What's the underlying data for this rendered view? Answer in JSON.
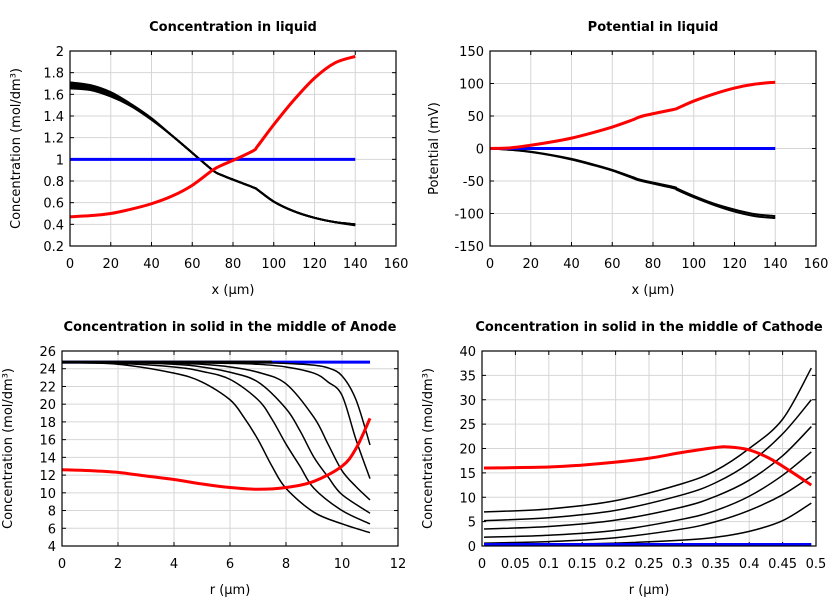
{
  "chart_data": [
    {
      "type": "line",
      "title": "Concentration in liquid",
      "xlabel": "x (µm)",
      "ylabel": "Concentration (mol/dm³)",
      "xlim": [
        0,
        160
      ],
      "ylim": [
        0.2,
        2
      ],
      "xticks": [
        "0",
        "20",
        "40",
        "60",
        "80",
        "100",
        "120",
        "140",
        "160"
      ],
      "yticks": [
        "0.2",
        "0.4",
        "0.6",
        "0.8",
        "1",
        "1.2",
        "1.4",
        "1.6",
        "1.8",
        "2"
      ],
      "grid": true,
      "series": [
        {
          "name": "black-1",
          "color": "#000000",
          "width": 2,
          "x": [
            0,
            10,
            20,
            30,
            40,
            50,
            60,
            70,
            75,
            90,
            92,
            100,
            110,
            120,
            130,
            140
          ],
          "y": [
            1.71,
            1.685,
            1.62,
            1.51,
            1.38,
            1.22,
            1.06,
            0.9,
            0.85,
            0.74,
            0.72,
            0.61,
            0.52,
            0.46,
            0.42,
            0.39
          ]
        },
        {
          "name": "black-2",
          "color": "#000000",
          "width": 2,
          "x": [
            0,
            10,
            20,
            30,
            40,
            50,
            60,
            70,
            75,
            90,
            92,
            100,
            110,
            120,
            130,
            140
          ],
          "y": [
            1.7,
            1.675,
            1.61,
            1.505,
            1.375,
            1.22,
            1.06,
            0.9,
            0.85,
            0.74,
            0.72,
            0.61,
            0.52,
            0.46,
            0.42,
            0.395
          ]
        },
        {
          "name": "black-3",
          "color": "#000000",
          "width": 2,
          "x": [
            0,
            10,
            20,
            30,
            40,
            50,
            60,
            70,
            75,
            90,
            92,
            100,
            110,
            120,
            130,
            140
          ],
          "y": [
            1.685,
            1.665,
            1.6,
            1.5,
            1.37,
            1.22,
            1.06,
            0.9,
            0.85,
            0.74,
            0.72,
            0.61,
            0.52,
            0.46,
            0.42,
            0.4
          ]
        },
        {
          "name": "black-4",
          "color": "#000000",
          "width": 2,
          "x": [
            0,
            10,
            20,
            30,
            40,
            50,
            60,
            70,
            75,
            90,
            92,
            100,
            110,
            120,
            130,
            140
          ],
          "y": [
            1.67,
            1.65,
            1.59,
            1.495,
            1.37,
            1.22,
            1.06,
            0.9,
            0.85,
            0.74,
            0.72,
            0.61,
            0.52,
            0.46,
            0.42,
            0.4
          ]
        },
        {
          "name": "black-5",
          "color": "#000000",
          "width": 2,
          "x": [
            0,
            10,
            20,
            30,
            40,
            50,
            60,
            70,
            75,
            90,
            92,
            100,
            110,
            120,
            130,
            140
          ],
          "y": [
            1.655,
            1.64,
            1.58,
            1.49,
            1.365,
            1.22,
            1.06,
            0.9,
            0.85,
            0.74,
            0.72,
            0.61,
            0.52,
            0.46,
            0.42,
            0.4
          ]
        },
        {
          "name": "blue",
          "color": "#0000ff",
          "width": 3,
          "x": [
            0,
            140
          ],
          "y": [
            1,
            1
          ]
        },
        {
          "name": "red",
          "color": "#ff0000",
          "width": 3,
          "x": [
            0,
            10,
            20,
            30,
            40,
            50,
            60,
            70,
            75,
            80,
            90,
            92,
            100,
            110,
            120,
            130,
            140
          ],
          "y": [
            0.47,
            0.48,
            0.5,
            0.54,
            0.59,
            0.66,
            0.76,
            0.9,
            0.95,
            0.99,
            1.08,
            1.12,
            1.32,
            1.55,
            1.75,
            1.89,
            1.95
          ]
        }
      ]
    },
    {
      "type": "line",
      "title": "Potential in liquid",
      "xlabel": "x (µm)",
      "ylabel": "Potential (mV)",
      "xlim": [
        0,
        160
      ],
      "ylim": [
        -150,
        150
      ],
      "xticks": [
        "0",
        "20",
        "40",
        "60",
        "80",
        "100",
        "120",
        "140",
        "160"
      ],
      "yticks": [
        "-150",
        "-100",
        "-50",
        "0",
        "50",
        "100",
        "150"
      ],
      "grid": true,
      "series": [
        {
          "name": "black-1",
          "color": "#000000",
          "width": 2,
          "x": [
            0,
            10,
            20,
            30,
            40,
            50,
            60,
            70,
            75,
            90,
            92,
            100,
            110,
            120,
            130,
            140
          ],
          "y": [
            0,
            -2,
            -5,
            -10,
            -16,
            -24,
            -33,
            -44,
            -49,
            -59,
            -62,
            -73,
            -85,
            -94,
            -101,
            -104
          ]
        },
        {
          "name": "black-2",
          "color": "#000000",
          "width": 2,
          "x": [
            0,
            10,
            20,
            30,
            40,
            50,
            60,
            70,
            75,
            90,
            92,
            100,
            110,
            120,
            130,
            140
          ],
          "y": [
            0,
            -2,
            -5.5,
            -10.5,
            -17,
            -25,
            -34,
            -45.5,
            -50.5,
            -61,
            -64,
            -75,
            -87,
            -97,
            -104,
            -107
          ]
        },
        {
          "name": "blue",
          "color": "#0000ff",
          "width": 3,
          "x": [
            0,
            140
          ],
          "y": [
            0,
            0
          ]
        },
        {
          "name": "red",
          "color": "#ff0000",
          "width": 3,
          "x": [
            0,
            10,
            20,
            30,
            40,
            50,
            60,
            70,
            75,
            90,
            92,
            100,
            110,
            120,
            130,
            140
          ],
          "y": [
            0,
            1,
            5,
            10,
            16,
            24,
            33,
            44,
            50,
            60,
            62,
            73,
            84,
            93,
            99,
            102
          ]
        }
      ]
    },
    {
      "type": "line",
      "title": "Concentration in solid in the middle of Anode",
      "xlabel": "r (µm)",
      "ylabel": "Concentration (mol/dm³)",
      "xlim": [
        0,
        12
      ],
      "ylim": [
        4,
        26
      ],
      "xticks": [
        "0",
        "2",
        "4",
        "6",
        "8",
        "10",
        "12"
      ],
      "yticks": [
        "4",
        "6",
        "8",
        "10",
        "12",
        "14",
        "16",
        "18",
        "20",
        "22",
        "24",
        "26"
      ],
      "grid": true,
      "series": [
        {
          "name": "blue",
          "color": "#0000ff",
          "width": 3,
          "x": [
            0,
            11
          ],
          "y": [
            24.75,
            24.75
          ]
        },
        {
          "name": "black-1",
          "color": "#000000",
          "width": 1.5,
          "x": [
            0,
            2,
            4,
            5,
            6,
            6.5,
            7,
            7.5,
            8,
            9,
            10,
            11
          ],
          "y": [
            24.7,
            24.5,
            23.5,
            22.5,
            20.5,
            18.5,
            16,
            13,
            10.5,
            7.8,
            6.5,
            5.5
          ]
        },
        {
          "name": "black-2",
          "color": "#000000",
          "width": 1.5,
          "x": [
            0,
            2,
            4,
            5,
            6,
            7,
            7.5,
            8,
            8.5,
            9,
            10,
            11
          ],
          "y": [
            24.7,
            24.6,
            24.2,
            23.7,
            22.8,
            20.5,
            18.3,
            15.5,
            13,
            10.5,
            8.0,
            6.5
          ]
        },
        {
          "name": "black-3",
          "color": "#000000",
          "width": 1.5,
          "x": [
            0,
            2,
            4,
            5,
            6,
            7,
            8,
            8.5,
            9,
            9.5,
            10,
            11
          ],
          "y": [
            24.7,
            24.7,
            24.5,
            24.2,
            23.6,
            22.5,
            19.5,
            17,
            14,
            11.8,
            9.8,
            7.7
          ]
        },
        {
          "name": "black-4",
          "color": "#000000",
          "width": 1.5,
          "x": [
            0,
            2,
            4,
            5,
            6,
            7,
            8,
            9,
            9.5,
            10,
            10.5,
            11
          ],
          "y": [
            24.7,
            24.7,
            24.6,
            24.5,
            24.2,
            23.6,
            22.3,
            18.5,
            15.5,
            12.5,
            10.7,
            9.2
          ]
        },
        {
          "name": "black-5",
          "color": "#000000",
          "width": 1.5,
          "x": [
            0,
            4,
            6,
            7,
            8,
            9,
            9.5,
            10,
            10.5,
            11
          ],
          "y": [
            24.7,
            24.7,
            24.6,
            24.5,
            24.2,
            23.5,
            22.5,
            21,
            16,
            11.6
          ]
        },
        {
          "name": "black-6",
          "color": "#000000",
          "width": 1.5,
          "x": [
            0,
            4,
            6,
            7,
            8,
            9,
            9.5,
            10,
            10.5,
            11
          ],
          "y": [
            24.7,
            24.7,
            24.7,
            24.7,
            24.6,
            24.4,
            24.1,
            23.2,
            20.5,
            15.4
          ]
        },
        {
          "name": "black-7",
          "color": "#000000",
          "width": 3,
          "x": [
            0,
            7.5
          ],
          "y": [
            24.75,
            24.75
          ]
        },
        {
          "name": "red",
          "color": "#ff0000",
          "width": 3,
          "x": [
            0,
            1,
            2,
            3,
            4,
            5,
            6,
            7,
            8,
            9,
            10,
            10.5,
            11
          ],
          "y": [
            12.6,
            12.5,
            12.3,
            11.9,
            11.5,
            11,
            10.6,
            10.4,
            10.6,
            11.3,
            13,
            15,
            18.4
          ]
        }
      ]
    },
    {
      "type": "line",
      "title": "Concentration in solid in the middle of Cathode",
      "xlabel": "r (µm)",
      "ylabel": "Concentration (mol/dm³)",
      "xlim": [
        0,
        0.5
      ],
      "ylim": [
        0,
        40
      ],
      "xticks": [
        "0",
        "0.05",
        "0.1",
        "0.15",
        "0.2",
        "0.25",
        "0.3",
        "0.35",
        "0.4",
        "0.45",
        "0.5"
      ],
      "yticks": [
        "0",
        "5",
        "10",
        "15",
        "20",
        "25",
        "30",
        "35",
        "40"
      ],
      "grid": true,
      "series": [
        {
          "name": "black-1",
          "color": "#000000",
          "width": 1.5,
          "x": [
            0.003,
            0.1,
            0.2,
            0.3,
            0.35,
            0.4,
            0.45,
            0.493
          ],
          "y": [
            7,
            7.6,
            9.3,
            12.8,
            15.5,
            20,
            26,
            36.5
          ]
        },
        {
          "name": "black-2",
          "color": "#000000",
          "width": 1.5,
          "x": [
            0.003,
            0.1,
            0.2,
            0.3,
            0.35,
            0.4,
            0.45,
            0.493
          ],
          "y": [
            5.2,
            5.8,
            7.3,
            10.5,
            13,
            17,
            23,
            30
          ]
        },
        {
          "name": "black-3",
          "color": "#000000",
          "width": 1.5,
          "x": [
            0.003,
            0.1,
            0.2,
            0.3,
            0.35,
            0.4,
            0.45,
            0.493
          ],
          "y": [
            3.5,
            4,
            5.3,
            8,
            10.2,
            13.5,
            18.5,
            24.5
          ]
        },
        {
          "name": "black-4",
          "color": "#000000",
          "width": 1.5,
          "x": [
            0.003,
            0.1,
            0.2,
            0.3,
            0.35,
            0.4,
            0.45,
            0.493
          ],
          "y": [
            1.8,
            2.2,
            3.2,
            5.5,
            7.3,
            10.2,
            14.5,
            19.3
          ]
        },
        {
          "name": "black-5",
          "color": "#000000",
          "width": 1.5,
          "x": [
            0.003,
            0.1,
            0.2,
            0.3,
            0.35,
            0.4,
            0.45,
            0.493
          ],
          "y": [
            0.6,
            0.9,
            1.7,
            3.5,
            5,
            7.3,
            10.5,
            14.3
          ]
        },
        {
          "name": "black-6",
          "color": "#000000",
          "width": 1.5,
          "x": [
            0.003,
            0.1,
            0.2,
            0.3,
            0.35,
            0.4,
            0.45,
            0.493
          ],
          "y": [
            0.3,
            0.4,
            0.6,
            1.2,
            1.8,
            3,
            5.2,
            8.8
          ]
        },
        {
          "name": "blue",
          "color": "#0000ff",
          "width": 3,
          "x": [
            0.003,
            0.493
          ],
          "y": [
            0.3,
            0.3
          ]
        },
        {
          "name": "red",
          "color": "#ff0000",
          "width": 3,
          "x": [
            0.003,
            0.1,
            0.15,
            0.2,
            0.25,
            0.3,
            0.35,
            0.37,
            0.4,
            0.43,
            0.46,
            0.493
          ],
          "y": [
            16,
            16.2,
            16.6,
            17.2,
            18,
            19.2,
            20.2,
            20.3,
            19.7,
            18,
            15.5,
            12.5
          ]
        }
      ]
    }
  ]
}
